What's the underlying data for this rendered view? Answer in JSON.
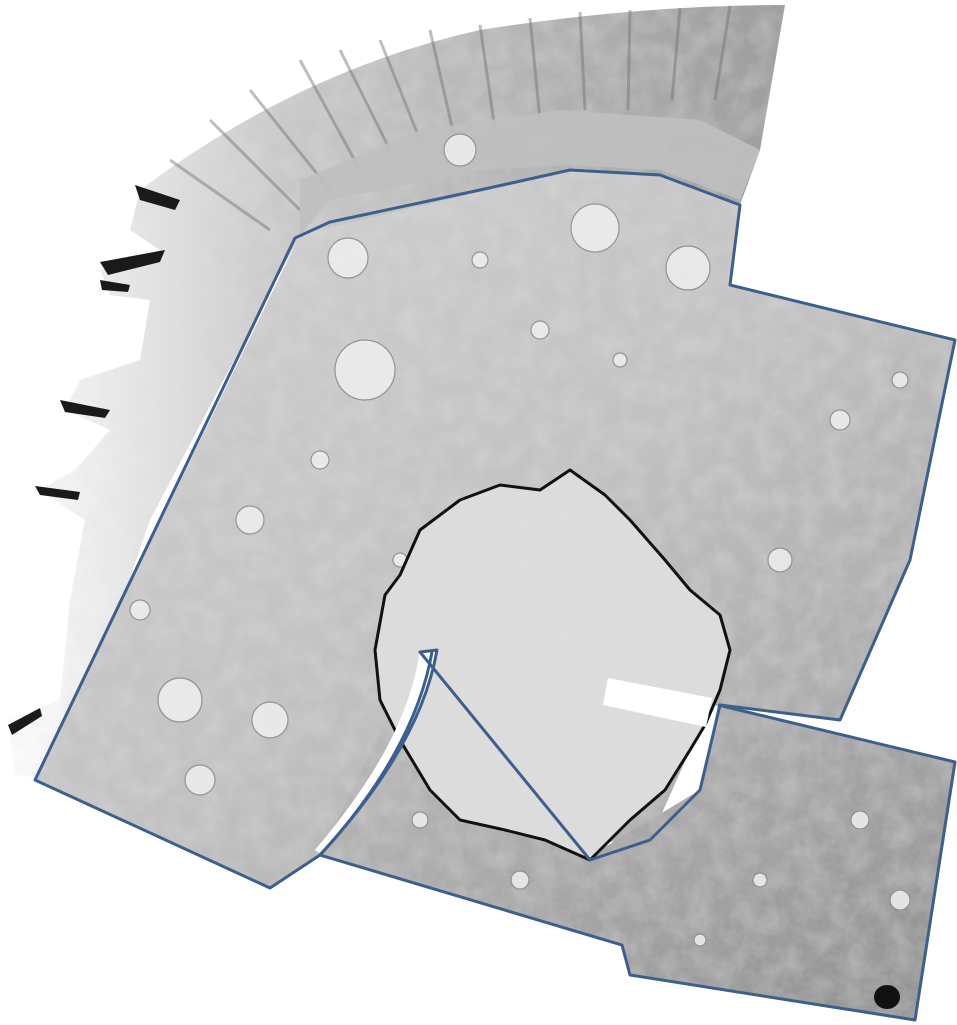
{
  "colors": {
    "background": "#ffffff",
    "terrain_light": "#e2e2e2",
    "terrain_mid": "#b7b7b7",
    "terrain_dark": "#8a8a8a",
    "streak_dark": "#1a1a1a",
    "footprint_outline": "#3e5f8c",
    "crater_outline": "#111111",
    "data_gap": "#ffffff"
  },
  "regions": [
    {
      "name": "streaked-reprojected-margin",
      "tone": "streaked"
    },
    {
      "name": "imaging-footprint-north",
      "outline": "blue"
    },
    {
      "name": "imaging-footprint-southeast",
      "outline": "blue"
    },
    {
      "name": "large-impact-basin",
      "outline": "black"
    },
    {
      "name": "data-gap",
      "tone": "white"
    }
  ]
}
